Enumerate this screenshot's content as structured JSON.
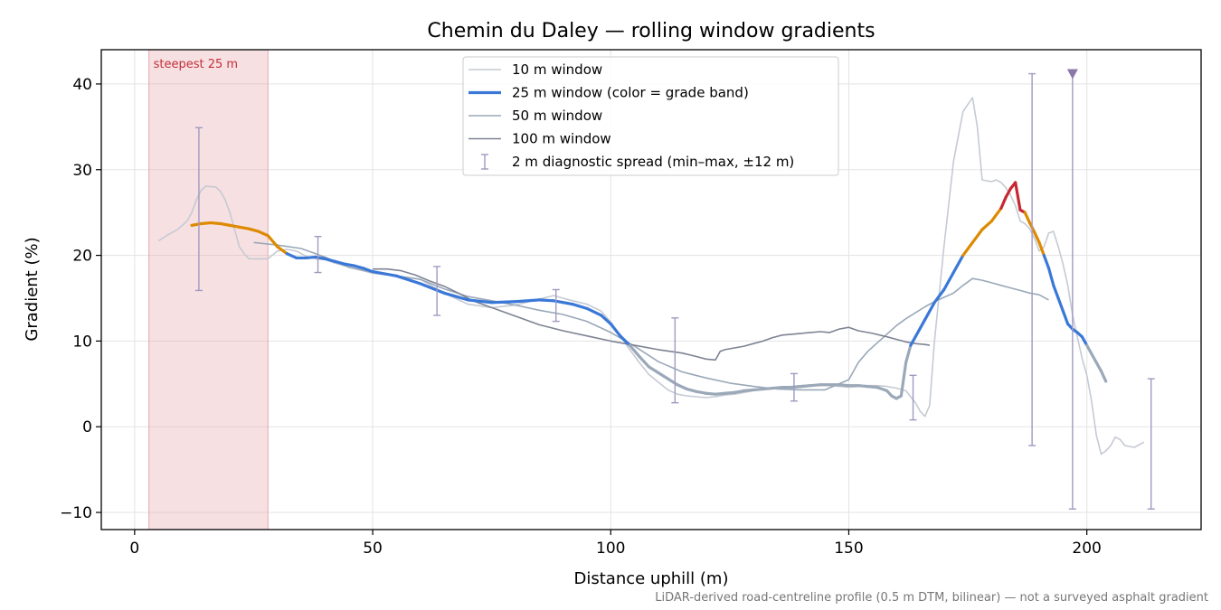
{
  "chart_data": {
    "type": "line",
    "title": "Chemin du Daley — rolling window gradients",
    "xlabel": "Distance uphill (m)",
    "ylabel": "Gradient (%)",
    "xlim": [
      -7,
      224
    ],
    "ylim": [
      -12,
      44
    ],
    "xticks": [
      0,
      50,
      100,
      150,
      200
    ],
    "yticks": [
      -10,
      0,
      10,
      20,
      30,
      40
    ],
    "xtick_labels": [
      "0",
      "50",
      "100",
      "150",
      "200"
    ],
    "ytick_labels": [
      "−10",
      "0",
      "10",
      "20",
      "30",
      "40"
    ],
    "grid": true,
    "legend_position": "top-center",
    "note": "LiDAR-derived road-centreline profile (0.5 m DTM, bilinear) — not a surveyed asphalt gradient",
    "highlight_band": {
      "label": "steepest 25 m",
      "x_start": 3,
      "x_end": 28,
      "color": "#e8a7ad"
    },
    "colors": {
      "band_green": "#9aa8b8",
      "band_blue": "#3a78d8",
      "band_orange": "#dd8a00",
      "band_red": "#c62832"
    },
    "series": [
      {
        "name": "10 m window",
        "color": "#c5cad3",
        "x": [
          5,
          7,
          9,
          11,
          12,
          13,
          14,
          15,
          16,
          17,
          18,
          19,
          20,
          21,
          22,
          23,
          24,
          26,
          28,
          30,
          32,
          34,
          36,
          38,
          40,
          42,
          44,
          46,
          48,
          50,
          55,
          60,
          65,
          70,
          75,
          80,
          85,
          88,
          90,
          92,
          95,
          98,
          100,
          102,
          104,
          106,
          108,
          110,
          112,
          114,
          116,
          118,
          120,
          122,
          124,
          126,
          128,
          130,
          132,
          134,
          136,
          138,
          140,
          142,
          144,
          146,
          148,
          150,
          152,
          154,
          156,
          158,
          160,
          162,
          163,
          164,
          165,
          166,
          167,
          168,
          170,
          172,
          174,
          176,
          177,
          178,
          180,
          181,
          182,
          183,
          184,
          185,
          186,
          187,
          188,
          189,
          190,
          191,
          192,
          193,
          194,
          195,
          196,
          197,
          198,
          199,
          200,
          201,
          202,
          203,
          204,
          205,
          206,
          207,
          208,
          210,
          212
        ],
        "y": [
          21.7,
          22.4,
          23.0,
          24.0,
          25.0,
          26.5,
          27.6,
          28.1,
          28.0,
          28.0,
          27.5,
          26.5,
          25.0,
          23.0,
          21.0,
          20.2,
          19.6,
          19.6,
          19.6,
          20.5,
          20.7,
          20.5,
          19.9,
          19.6,
          19.5,
          19.1,
          18.8,
          18.5,
          18.2,
          17.9,
          17.6,
          17.2,
          15.6,
          14.3,
          13.9,
          14.2,
          14.9,
          15.3,
          15.0,
          14.7,
          14.3,
          13.5,
          12.2,
          10.6,
          9.0,
          7.5,
          6.1,
          5.2,
          4.3,
          3.8,
          3.6,
          3.5,
          3.4,
          3.5,
          3.7,
          3.8,
          4.0,
          4.2,
          4.4,
          4.5,
          4.6,
          4.7,
          4.8,
          4.9,
          4.9,
          4.8,
          4.7,
          4.6,
          4.7,
          4.8,
          4.8,
          4.7,
          4.5,
          4.2,
          3.5,
          2.8,
          1.8,
          1.2,
          2.5,
          10.0,
          21.0,
          31.0,
          36.8,
          38.4,
          35.0,
          28.8,
          28.6,
          28.8,
          28.5,
          27.9,
          27.0,
          25.8,
          24.0,
          23.7,
          23.1,
          22.0,
          20.5,
          21.0,
          22.6,
          22.8,
          21.0,
          19.0,
          16.5,
          13.0,
          10.5,
          8.0,
          6.0,
          3.0,
          -1.0,
          -3.2,
          -2.8,
          -2.2,
          -1.2,
          -1.5,
          -2.2,
          -2.4,
          -1.8
        ]
      },
      {
        "name": "25 m window (color = grade band)",
        "color": "#3a78d8",
        "colored_by_grade_band": true,
        "x": [
          12,
          14,
          16,
          18,
          20,
          22,
          24,
          26,
          28,
          30,
          32,
          34,
          36,
          38,
          40,
          42,
          44,
          46,
          48,
          50,
          55,
          60,
          65,
          70,
          75,
          80,
          85,
          88,
          90,
          92,
          95,
          98,
          100,
          102,
          104,
          106,
          108,
          110,
          112,
          114,
          116,
          118,
          120,
          122,
          124,
          126,
          128,
          130,
          132,
          134,
          136,
          138,
          140,
          142,
          144,
          146,
          148,
          150,
          152,
          154,
          156,
          158,
          159,
          160,
          161,
          162,
          163,
          164,
          166,
          168,
          170,
          172,
          174,
          176,
          178,
          180,
          182,
          183,
          184,
          185,
          186,
          187,
          188,
          189,
          190,
          191,
          192,
          193,
          194,
          195,
          196,
          197,
          198,
          199,
          200,
          201,
          202,
          203,
          204
        ],
        "y": [
          23.5,
          23.7,
          23.8,
          23.7,
          23.5,
          23.3,
          23.1,
          22.8,
          22.3,
          21.0,
          20.2,
          19.7,
          19.7,
          19.8,
          19.6,
          19.3,
          19.0,
          18.8,
          18.5,
          18.1,
          17.6,
          16.7,
          15.6,
          14.8,
          14.5,
          14.6,
          14.8,
          14.7,
          14.5,
          14.3,
          13.8,
          13.0,
          12.0,
          10.6,
          9.5,
          8.2,
          7.0,
          6.3,
          5.6,
          4.9,
          4.4,
          4.1,
          3.9,
          3.8,
          3.9,
          4.0,
          4.2,
          4.3,
          4.4,
          4.5,
          4.6,
          4.6,
          4.7,
          4.8,
          4.9,
          4.9,
          4.9,
          4.8,
          4.8,
          4.7,
          4.6,
          4.2,
          3.6,
          3.3,
          3.6,
          7.5,
          9.5,
          10.5,
          12.5,
          14.5,
          16.0,
          18.0,
          20.0,
          21.5,
          23.0,
          24.0,
          25.5,
          26.8,
          27.8,
          28.5,
          25.3,
          25.0,
          23.8,
          22.7,
          21.5,
          20.0,
          18.5,
          16.5,
          15.0,
          13.5,
          12.0,
          11.4,
          11.0,
          10.5,
          9.5,
          8.5,
          7.5,
          6.5,
          5.3
        ]
      },
      {
        "name": "50 m window",
        "color": "#9aa8b8",
        "x": [
          25,
          30,
          35,
          40,
          45,
          50,
          55,
          60,
          65,
          70,
          75,
          80,
          85,
          90,
          95,
          100,
          105,
          110,
          115,
          120,
          125,
          130,
          135,
          140,
          145,
          150,
          152,
          154,
          156,
          158,
          160,
          162,
          164,
          166,
          168,
          170,
          172,
          174,
          176,
          178,
          180,
          182,
          184,
          186,
          188,
          190,
          192
        ],
        "y": [
          21.5,
          21.2,
          20.8,
          19.8,
          18.6,
          18.0,
          17.6,
          17.2,
          16.1,
          15.2,
          14.7,
          14.2,
          13.6,
          13.1,
          12.3,
          11.0,
          9.4,
          7.6,
          6.4,
          5.7,
          5.1,
          4.7,
          4.4,
          4.3,
          4.3,
          5.5,
          7.5,
          8.8,
          9.8,
          10.8,
          11.8,
          12.6,
          13.3,
          14.0,
          14.6,
          15.1,
          15.6,
          16.5,
          17.3,
          17.1,
          16.8,
          16.5,
          16.2,
          15.9,
          15.6,
          15.4,
          14.8
        ]
      },
      {
        "name": "100 m window",
        "color": "#7d8393",
        "x": [
          50,
          53,
          56,
          59,
          62,
          65,
          68,
          71,
          75,
          80,
          85,
          90,
          95,
          100,
          105,
          110,
          115,
          118,
          120,
          122,
          123,
          124,
          126,
          128,
          130,
          132,
          134,
          136,
          140,
          142,
          144,
          146,
          148,
          150,
          152,
          155,
          158,
          160,
          162,
          164,
          166,
          167
        ],
        "y": [
          18.4,
          18.4,
          18.2,
          17.7,
          17.0,
          16.4,
          15.6,
          14.7,
          13.9,
          12.9,
          11.9,
          11.2,
          10.6,
          10.0,
          9.5,
          9.0,
          8.6,
          8.2,
          7.9,
          7.8,
          8.8,
          9.0,
          9.2,
          9.4,
          9.7,
          10.0,
          10.4,
          10.7,
          10.9,
          11.0,
          11.1,
          11.0,
          11.4,
          11.6,
          11.2,
          10.9,
          10.5,
          10.2,
          9.9,
          9.7,
          9.6,
          9.5
        ]
      }
    ],
    "errorbars": {
      "name": "2 m diagnostic spread (min–max, ±12 m)",
      "color": "#a09ac0",
      "points": [
        {
          "x": 13.5,
          "min": 15.9,
          "max": 34.9
        },
        {
          "x": 38.5,
          "min": 18.0,
          "max": 22.2
        },
        {
          "x": 63.5,
          "min": 13.0,
          "max": 18.7
        },
        {
          "x": 88.5,
          "min": 12.3,
          "max": 16.0
        },
        {
          "x": 113.5,
          "min": 2.8,
          "max": 12.7
        },
        {
          "x": 138.5,
          "min": 3.0,
          "max": 6.2
        },
        {
          "x": 163.5,
          "min": 0.8,
          "max": 6.0
        },
        {
          "x": 188.5,
          "min": -2.2,
          "max": 41.2
        },
        {
          "x": 197.0,
          "min": -9.6,
          "max": 41.2,
          "clipped_top": true
        },
        {
          "x": 213.5,
          "min": -9.6,
          "max": 5.6
        }
      ]
    }
  }
}
